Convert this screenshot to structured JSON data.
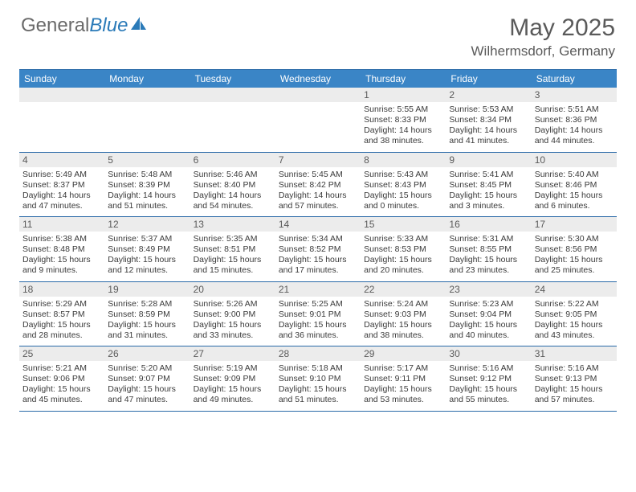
{
  "brand": {
    "general": "General",
    "blue": "Blue"
  },
  "title": "May 2025",
  "location": "Wilhermsdorf, Germany",
  "colors": {
    "header_bg": "#3a85c6",
    "rule": "#2a6aa8",
    "daybar_bg": "#ececec",
    "text_muted": "#5a5a5a",
    "text_body": "#3a3a3a"
  },
  "dow": [
    "Sunday",
    "Monday",
    "Tuesday",
    "Wednesday",
    "Thursday",
    "Friday",
    "Saturday"
  ],
  "weeks": [
    [
      null,
      null,
      null,
      null,
      {
        "n": "1",
        "sr": "5:55 AM",
        "ss": "8:33 PM",
        "dl": "14 hours and 38 minutes."
      },
      {
        "n": "2",
        "sr": "5:53 AM",
        "ss": "8:34 PM",
        "dl": "14 hours and 41 minutes."
      },
      {
        "n": "3",
        "sr": "5:51 AM",
        "ss": "8:36 PM",
        "dl": "14 hours and 44 minutes."
      }
    ],
    [
      {
        "n": "4",
        "sr": "5:49 AM",
        "ss": "8:37 PM",
        "dl": "14 hours and 47 minutes."
      },
      {
        "n": "5",
        "sr": "5:48 AM",
        "ss": "8:39 PM",
        "dl": "14 hours and 51 minutes."
      },
      {
        "n": "6",
        "sr": "5:46 AM",
        "ss": "8:40 PM",
        "dl": "14 hours and 54 minutes."
      },
      {
        "n": "7",
        "sr": "5:45 AM",
        "ss": "8:42 PM",
        "dl": "14 hours and 57 minutes."
      },
      {
        "n": "8",
        "sr": "5:43 AM",
        "ss": "8:43 PM",
        "dl": "15 hours and 0 minutes."
      },
      {
        "n": "9",
        "sr": "5:41 AM",
        "ss": "8:45 PM",
        "dl": "15 hours and 3 minutes."
      },
      {
        "n": "10",
        "sr": "5:40 AM",
        "ss": "8:46 PM",
        "dl": "15 hours and 6 minutes."
      }
    ],
    [
      {
        "n": "11",
        "sr": "5:38 AM",
        "ss": "8:48 PM",
        "dl": "15 hours and 9 minutes."
      },
      {
        "n": "12",
        "sr": "5:37 AM",
        "ss": "8:49 PM",
        "dl": "15 hours and 12 minutes."
      },
      {
        "n": "13",
        "sr": "5:35 AM",
        "ss": "8:51 PM",
        "dl": "15 hours and 15 minutes."
      },
      {
        "n": "14",
        "sr": "5:34 AM",
        "ss": "8:52 PM",
        "dl": "15 hours and 17 minutes."
      },
      {
        "n": "15",
        "sr": "5:33 AM",
        "ss": "8:53 PM",
        "dl": "15 hours and 20 minutes."
      },
      {
        "n": "16",
        "sr": "5:31 AM",
        "ss": "8:55 PM",
        "dl": "15 hours and 23 minutes."
      },
      {
        "n": "17",
        "sr": "5:30 AM",
        "ss": "8:56 PM",
        "dl": "15 hours and 25 minutes."
      }
    ],
    [
      {
        "n": "18",
        "sr": "5:29 AM",
        "ss": "8:57 PM",
        "dl": "15 hours and 28 minutes."
      },
      {
        "n": "19",
        "sr": "5:28 AM",
        "ss": "8:59 PM",
        "dl": "15 hours and 31 minutes."
      },
      {
        "n": "20",
        "sr": "5:26 AM",
        "ss": "9:00 PM",
        "dl": "15 hours and 33 minutes."
      },
      {
        "n": "21",
        "sr": "5:25 AM",
        "ss": "9:01 PM",
        "dl": "15 hours and 36 minutes."
      },
      {
        "n": "22",
        "sr": "5:24 AM",
        "ss": "9:03 PM",
        "dl": "15 hours and 38 minutes."
      },
      {
        "n": "23",
        "sr": "5:23 AM",
        "ss": "9:04 PM",
        "dl": "15 hours and 40 minutes."
      },
      {
        "n": "24",
        "sr": "5:22 AM",
        "ss": "9:05 PM",
        "dl": "15 hours and 43 minutes."
      }
    ],
    [
      {
        "n": "25",
        "sr": "5:21 AM",
        "ss": "9:06 PM",
        "dl": "15 hours and 45 minutes."
      },
      {
        "n": "26",
        "sr": "5:20 AM",
        "ss": "9:07 PM",
        "dl": "15 hours and 47 minutes."
      },
      {
        "n": "27",
        "sr": "5:19 AM",
        "ss": "9:09 PM",
        "dl": "15 hours and 49 minutes."
      },
      {
        "n": "28",
        "sr": "5:18 AM",
        "ss": "9:10 PM",
        "dl": "15 hours and 51 minutes."
      },
      {
        "n": "29",
        "sr": "5:17 AM",
        "ss": "9:11 PM",
        "dl": "15 hours and 53 minutes."
      },
      {
        "n": "30",
        "sr": "5:16 AM",
        "ss": "9:12 PM",
        "dl": "15 hours and 55 minutes."
      },
      {
        "n": "31",
        "sr": "5:16 AM",
        "ss": "9:13 PM",
        "dl": "15 hours and 57 minutes."
      }
    ]
  ],
  "labels": {
    "sunrise": "Sunrise:",
    "sunset": "Sunset:",
    "daylight": "Daylight:"
  }
}
